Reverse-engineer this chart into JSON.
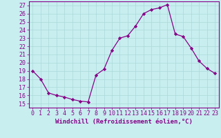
{
  "x": [
    0,
    1,
    2,
    3,
    4,
    5,
    6,
    7,
    8,
    9,
    10,
    11,
    12,
    13,
    14,
    15,
    16,
    17,
    18,
    19,
    20,
    21,
    22,
    23
  ],
  "y": [
    19,
    18,
    16.3,
    16,
    15.8,
    15.5,
    15.3,
    15.2,
    18.5,
    19.2,
    21.5,
    23,
    23.3,
    24.5,
    26,
    26.5,
    26.7,
    27.1,
    23.5,
    23.2,
    21.8,
    20.2,
    19.3,
    18.7
  ],
  "line_color": "#880088",
  "marker": "D",
  "marker_size": 2.2,
  "bg_color": "#c8eef0",
  "grid_color": "#aad8d8",
  "ylabel_ticks": [
    15,
    16,
    17,
    18,
    19,
    20,
    21,
    22,
    23,
    24,
    25,
    26,
    27
  ],
  "xlabel": "Windchill (Refroidissement éolien,°C)",
  "ylim": [
    14.5,
    27.5
  ],
  "xlim": [
    -0.5,
    23.5
  ],
  "xlabel_fontsize": 6.5,
  "tick_fontsize": 6.0,
  "tick_color": "#880088",
  "spine_color": "#880088"
}
